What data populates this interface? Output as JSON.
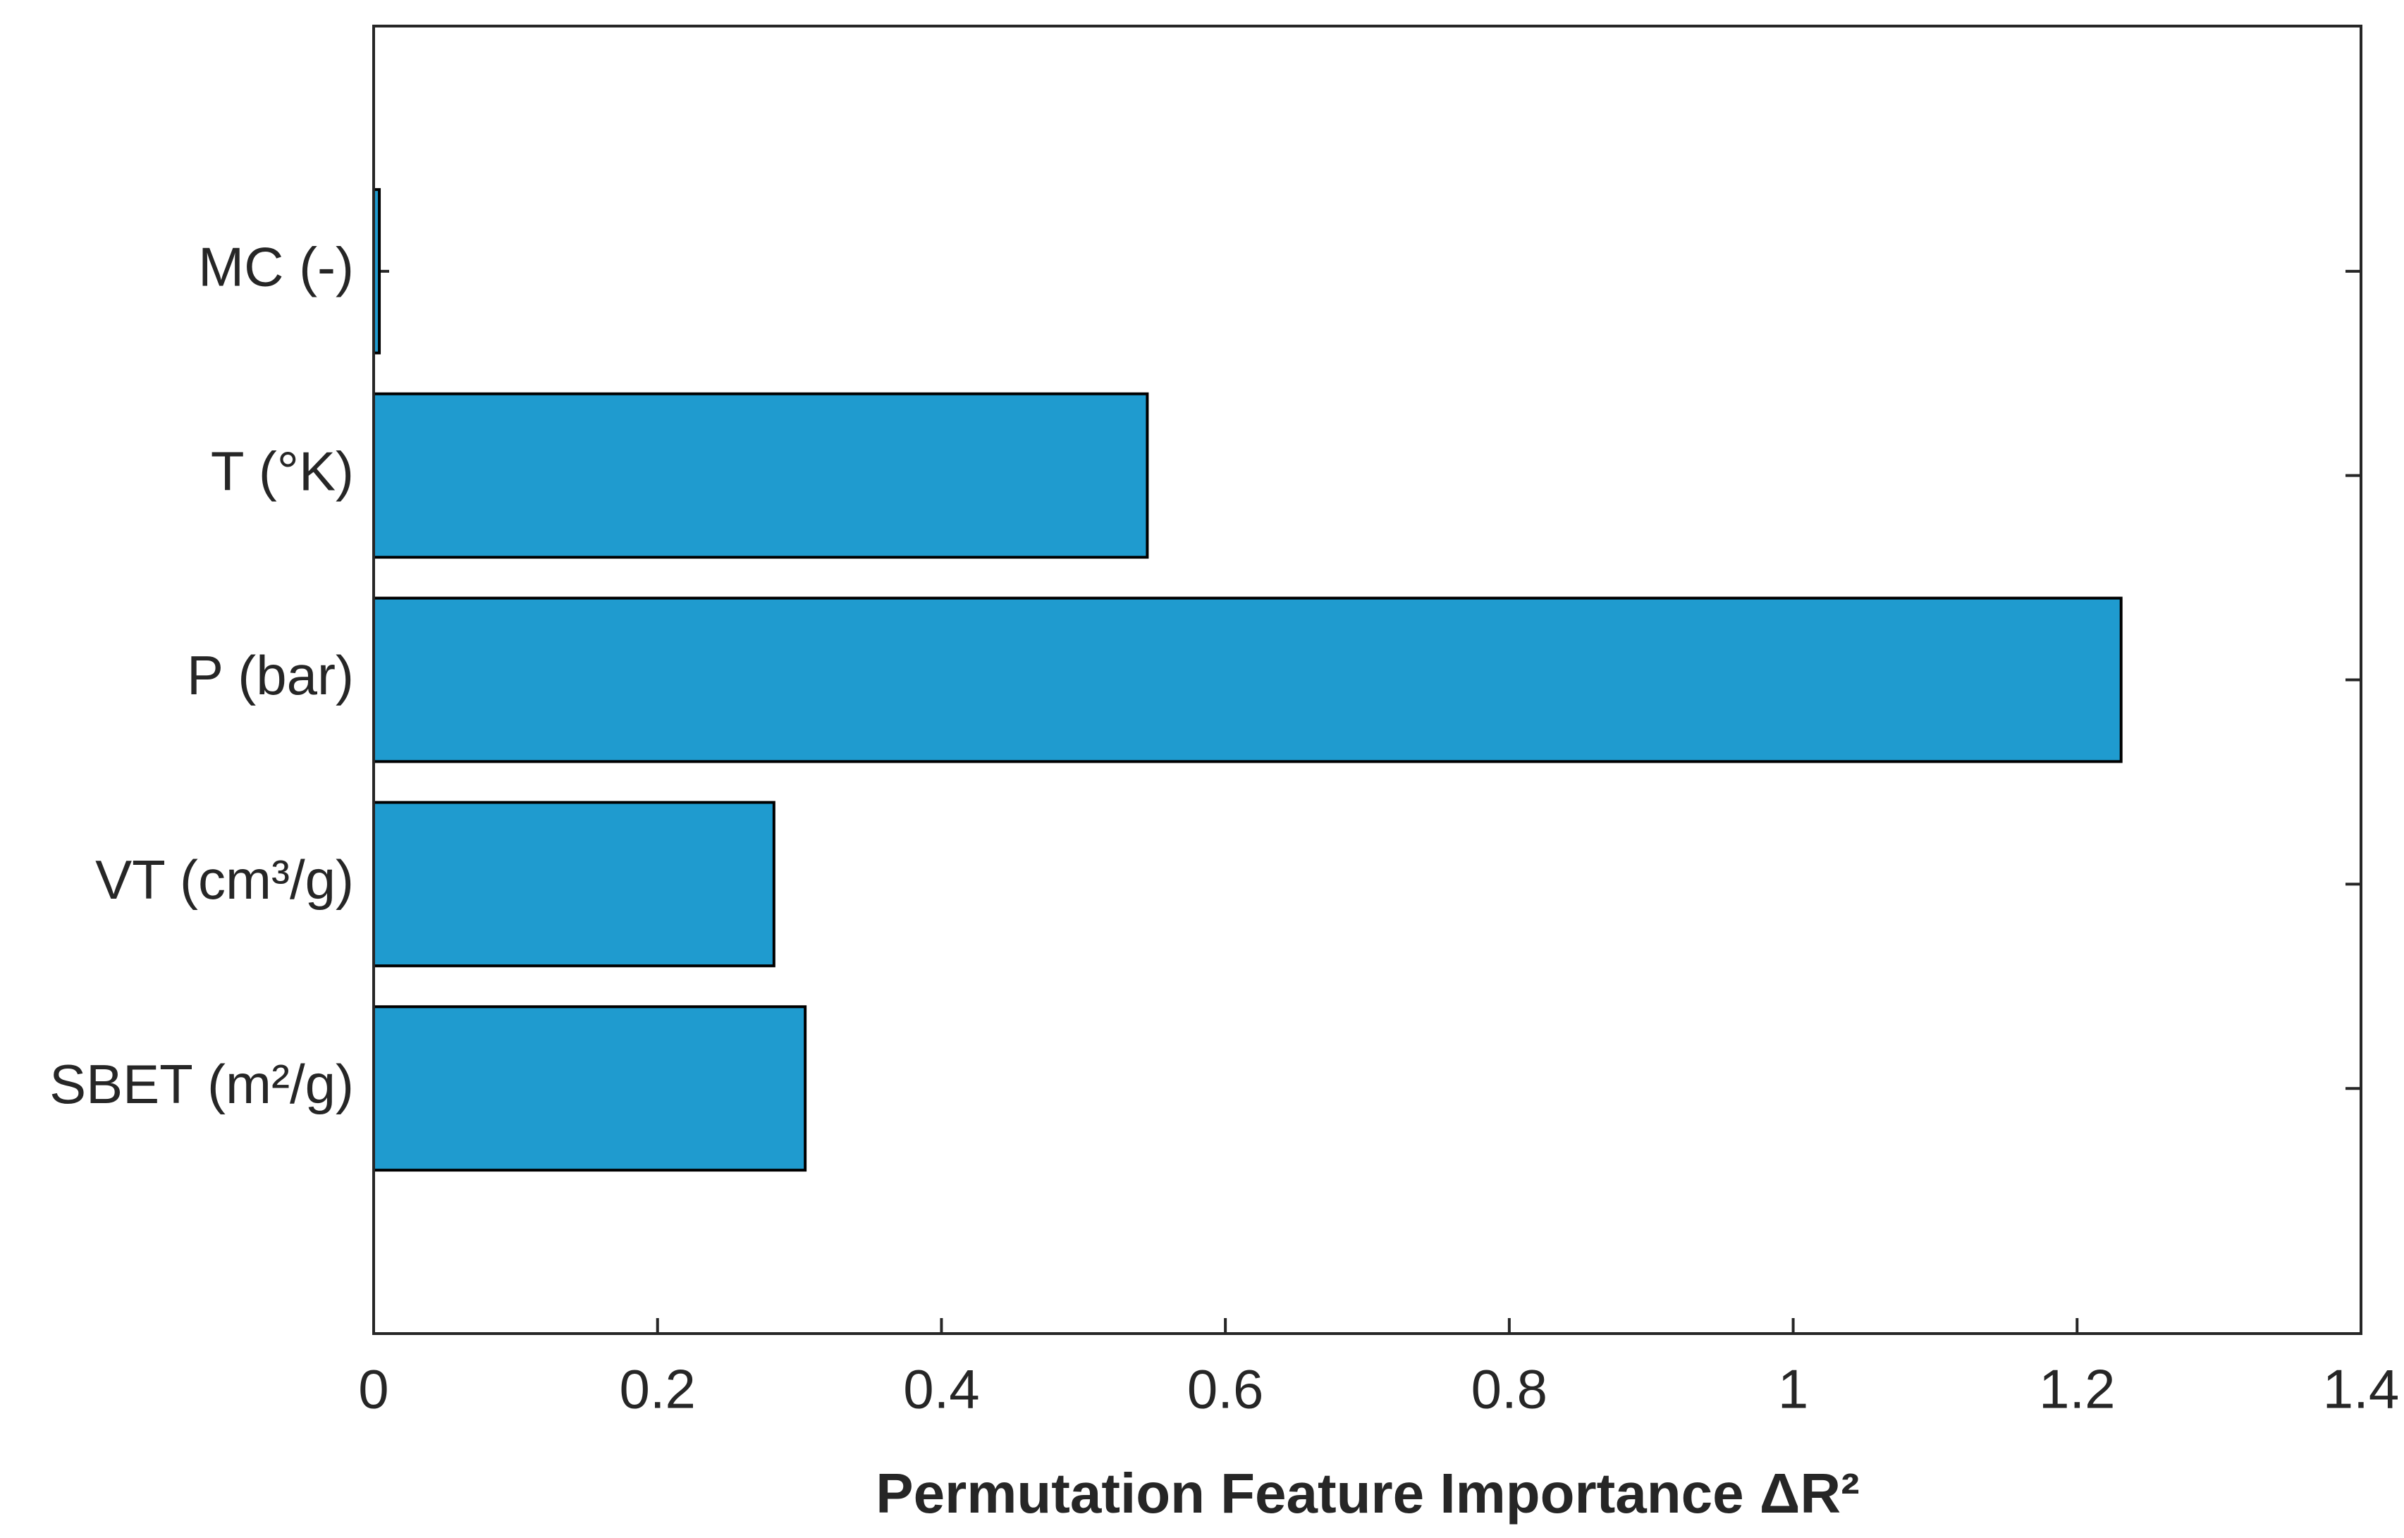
{
  "chart_data": {
    "type": "barh",
    "categories": [
      "MC (-)",
      "T (°K)",
      "P (bar)",
      "VT (cm³/g)",
      "SBET (m²/g)"
    ],
    "values": [
      0.004,
      0.545,
      1.231,
      0.282,
      0.304
    ],
    "color": "#1f9bcf",
    "x_label": "Permutation Feature Importance ΔR²",
    "xlim": [
      0,
      1.4
    ],
    "xticks": [
      0,
      0.2,
      0.4,
      0.6,
      0.8,
      1,
      1.2,
      1.4
    ]
  }
}
